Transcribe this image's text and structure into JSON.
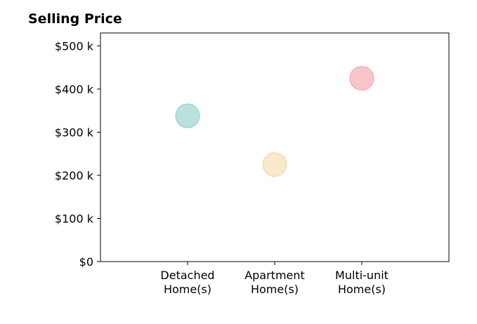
{
  "chart_data": {
    "type": "scatter",
    "title": "Selling Price",
    "xlabel": "",
    "ylabel": "",
    "categories": [
      [
        "Detached",
        "Home(s)"
      ],
      [
        "Apartment",
        "Home(s)"
      ],
      [
        "Multi-unit",
        "Home(s)"
      ]
    ],
    "values": [
      338000,
      225000,
      425000
    ],
    "colors": [
      "#b2dfd9",
      "#f7e7c4",
      "#f7bfc4"
    ],
    "edge_colors": [
      "#8ccbc2",
      "#efd7a4",
      "#ef9fa7"
    ],
    "ylim": [
      0,
      530000
    ],
    "yticks": [
      0,
      100000,
      200000,
      300000,
      400000,
      500000
    ],
    "ytick_labels": [
      "$0",
      "$100 k",
      "$200 k",
      "$300 k",
      "$400 k",
      "$500 k"
    ],
    "xlim": [
      0,
      4
    ],
    "grid": false,
    "legend": "none"
  }
}
